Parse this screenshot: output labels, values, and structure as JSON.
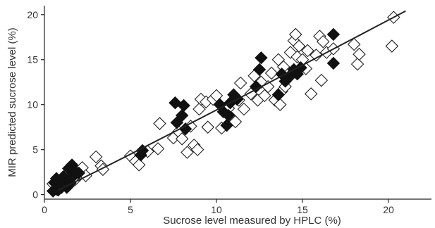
{
  "chart_data": {
    "type": "scatter",
    "xlabel": "Sucrose level measured by HPLC (%)",
    "ylabel": "MIR predicted sucrose level (%)",
    "xlim": [
      0,
      22.5
    ],
    "ylim": [
      -0.5,
      21
    ],
    "x_ticks": [
      0,
      5,
      10,
      15,
      20
    ],
    "y_ticks": [
      0,
      5,
      10,
      15,
      20
    ],
    "x_tick_labels": [
      "0",
      "5",
      "10",
      "15",
      "20"
    ],
    "y_tick_labels": [
      "0",
      "5",
      "10",
      "15",
      "20"
    ],
    "grid": false,
    "legend": "none",
    "marker": "diamond",
    "series": [
      {
        "style": "open",
        "points": [
          [
            0.5,
            1.2
          ],
          [
            0.7,
            0.6
          ],
          [
            0.9,
            1.5
          ],
          [
            1.0,
            0.8
          ],
          [
            1.2,
            2.0
          ],
          [
            1.4,
            1.0
          ],
          [
            1.6,
            2.5
          ],
          [
            1.8,
            1.7
          ],
          [
            2.0,
            2.2
          ],
          [
            2.2,
            3.0
          ],
          [
            2.4,
            2.1
          ],
          [
            3.0,
            4.2
          ],
          [
            3.3,
            3.2
          ],
          [
            3.4,
            2.8
          ],
          [
            5.0,
            4.3
          ],
          [
            5.3,
            3.7
          ],
          [
            5.5,
            3.3
          ],
          [
            6.0,
            4.8
          ],
          [
            6.6,
            5.1
          ],
          [
            6.7,
            7.9
          ],
          [
            7.5,
            6.3
          ],
          [
            7.8,
            7.0
          ],
          [
            8.0,
            6.2
          ],
          [
            8.3,
            4.7
          ],
          [
            8.5,
            7.6
          ],
          [
            8.7,
            5.5
          ],
          [
            8.9,
            5.0
          ],
          [
            9.0,
            9.5
          ],
          [
            9.1,
            10.6
          ],
          [
            9.4,
            10.3
          ],
          [
            9.5,
            7.5
          ],
          [
            9.8,
            10.6
          ],
          [
            10.0,
            11.0
          ],
          [
            10.3,
            7.4
          ],
          [
            10.7,
            9.6
          ],
          [
            10.9,
            8.5
          ],
          [
            11.1,
            8.1
          ],
          [
            11.3,
            10.5
          ],
          [
            11.4,
            12.4
          ],
          [
            11.6,
            9.5
          ],
          [
            12.0,
            11.2
          ],
          [
            12.4,
            10.5
          ],
          [
            12.6,
            12.5
          ],
          [
            12.8,
            11.0
          ],
          [
            13.0,
            12.0
          ],
          [
            13.2,
            13.5
          ],
          [
            13.4,
            10.5
          ],
          [
            13.6,
            15.0
          ],
          [
            13.7,
            10.0
          ],
          [
            13.8,
            11.5
          ],
          [
            14.0,
            12.0
          ],
          [
            14.2,
            13.0
          ],
          [
            14.3,
            15.8
          ],
          [
            14.5,
            17.1
          ],
          [
            14.6,
            17.8
          ],
          [
            14.7,
            15.3
          ],
          [
            14.8,
            16.5
          ],
          [
            15.0,
            15.0
          ],
          [
            15.2,
            14.0
          ],
          [
            15.5,
            11.2
          ],
          [
            15.8,
            15.5
          ],
          [
            16.0,
            17.6
          ],
          [
            16.1,
            12.7
          ],
          [
            16.2,
            17.0
          ],
          [
            16.4,
            15.8
          ],
          [
            16.8,
            16.2
          ],
          [
            18.0,
            16.7
          ],
          [
            18.2,
            14.5
          ],
          [
            18.3,
            15.6
          ],
          [
            20.2,
            16.5
          ],
          [
            20.3,
            19.7
          ],
          [
            12.2,
            13.2
          ],
          [
            13.9,
            14.2
          ],
          [
            15.3,
            16.0
          ]
        ]
      },
      {
        "style": "filled",
        "points": [
          [
            0.5,
            0.4
          ],
          [
            0.6,
            1.3
          ],
          [
            0.7,
            1.8
          ],
          [
            0.8,
            0.5
          ],
          [
            1.0,
            1.1
          ],
          [
            1.1,
            2.0
          ],
          [
            1.2,
            1.6
          ],
          [
            1.3,
            0.8
          ],
          [
            1.4,
            2.9
          ],
          [
            1.5,
            1.3
          ],
          [
            1.6,
            3.3
          ],
          [
            1.7,
            2.1
          ],
          [
            1.8,
            2.6
          ],
          [
            2.0,
            2.4
          ],
          [
            5.6,
            4.4
          ],
          [
            5.7,
            4.9
          ],
          [
            7.6,
            10.2
          ],
          [
            7.7,
            8.0
          ],
          [
            8.0,
            8.8
          ],
          [
            8.1,
            9.9
          ],
          [
            8.2,
            7.3
          ],
          [
            10.2,
            10.0
          ],
          [
            10.4,
            9.2
          ],
          [
            10.6,
            7.7
          ],
          [
            10.7,
            8.8
          ],
          [
            10.8,
            10.2
          ],
          [
            11.0,
            11.1
          ],
          [
            11.2,
            10.6
          ],
          [
            12.3,
            12.0
          ],
          [
            12.5,
            13.9
          ],
          [
            12.6,
            15.2
          ],
          [
            13.6,
            11.1
          ],
          [
            13.8,
            13.4
          ],
          [
            14.0,
            12.6
          ],
          [
            14.2,
            13.1
          ],
          [
            14.5,
            13.9
          ],
          [
            14.7,
            13.4
          ],
          [
            14.9,
            14.1
          ],
          [
            16.8,
            14.6
          ],
          [
            16.8,
            17.8
          ]
        ]
      }
    ],
    "fit_line": [
      [
        0.8,
        0.5
      ],
      [
        6,
        5.3
      ],
      [
        21,
        20.4
      ]
    ]
  }
}
